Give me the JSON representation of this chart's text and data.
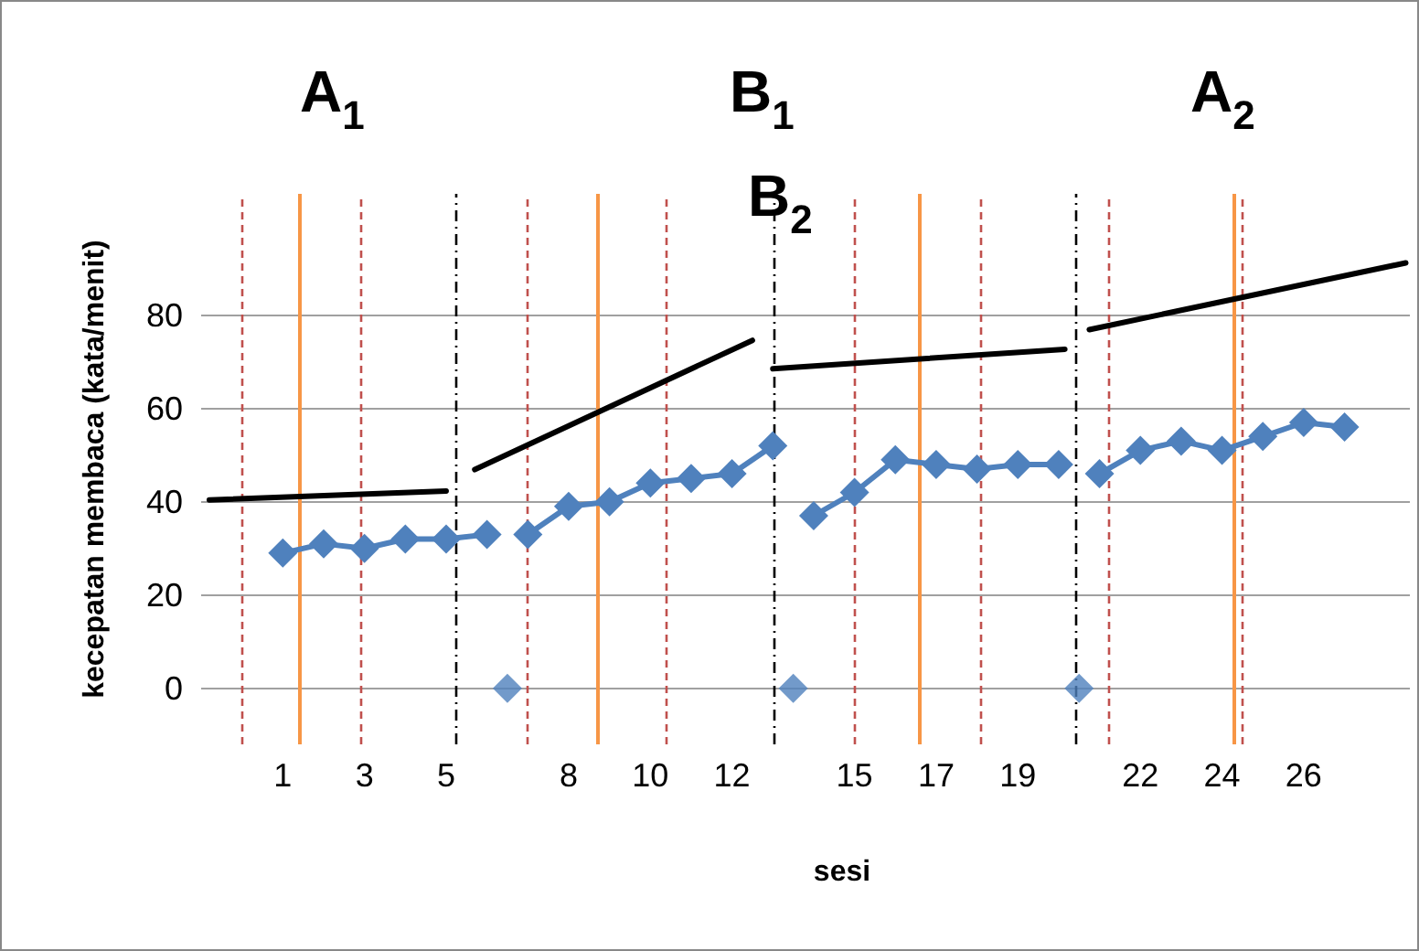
{
  "chart_data": {
    "type": "line",
    "xlabel": "sesi",
    "ylabel": "kecepatan membaca (kata/menit)",
    "xlim": [
      -1,
      28.6
    ],
    "xticks": [
      1,
      3,
      5,
      8,
      10,
      12,
      15,
      17,
      19,
      22,
      24,
      26
    ],
    "ylim": [
      -12,
      106
    ],
    "yticks": [
      0,
      20,
      40,
      60,
      80
    ],
    "grid": "y",
    "marker": "diamond",
    "series": [
      {
        "color": "#4f81bd",
        "x": [
          1,
          2,
          3,
          4,
          5,
          6
        ],
        "values": [
          29,
          31,
          30,
          32,
          32,
          33
        ]
      },
      {
        "color": "#4f81bd",
        "x": [
          7,
          8,
          9,
          10,
          11,
          12,
          13
        ],
        "values": [
          33,
          39,
          40,
          44,
          45,
          46,
          52
        ]
      },
      {
        "color": "#4f81bd",
        "x": [
          14,
          15,
          16,
          17,
          18,
          19,
          20
        ],
        "values": [
          37,
          42,
          49,
          48,
          47,
          48,
          48
        ]
      },
      {
        "color": "#4f81bd",
        "x": [
          21,
          22,
          23,
          24,
          25,
          26,
          27
        ],
        "values": [
          46,
          51,
          53,
          51,
          54,
          57,
          56
        ]
      },
      {
        "type": "scatter",
        "color": "#4f81bd",
        "x": [
          6.5,
          13.5,
          20.5
        ],
        "values": [
          0,
          0,
          0
        ]
      },
      {
        "color": "#000000",
        "marker": "none",
        "x": [
          -0.8,
          5.0
        ],
        "values": [
          40.4,
          42.3
        ]
      },
      {
        "color": "#000000",
        "marker": "none",
        "x": [
          5.7,
          12.5
        ],
        "values": [
          46.9,
          74.6
        ]
      },
      {
        "color": "#000000",
        "marker": "none",
        "x": [
          13.0,
          20.15
        ],
        "values": [
          68.5,
          72.7
        ]
      },
      {
        "color": "#000000",
        "marker": "none",
        "x": [
          20.75,
          28.5
        ],
        "values": [
          76.9,
          91.2
        ]
      }
    ],
    "ref_lines": [
      {
        "axis": "x",
        "value": 5.24,
        "color": "#000000",
        "line_style": "dashed"
      },
      {
        "axis": "x",
        "value": 13.03,
        "color": "#000000",
        "line_style": "dashed"
      },
      {
        "axis": "x",
        "value": 20.43,
        "color": "#000000",
        "line_style": "dashed"
      },
      {
        "axis": "x",
        "value": 1.4,
        "color": "#f79646",
        "line_style": "solid"
      },
      {
        "axis": "x",
        "value": 8.7,
        "color": "#f79646",
        "line_style": "solid"
      },
      {
        "axis": "x",
        "value": 16.6,
        "color": "#f79646",
        "line_style": "solid"
      },
      {
        "axis": "x",
        "value": 24.3,
        "color": "#f79646",
        "line_style": "solid"
      },
      {
        "axis": "x",
        "value": 0,
        "color": "#c0504d",
        "line_style": "dashed"
      },
      {
        "axis": "x",
        "value": 2.9,
        "color": "#c0504d",
        "line_style": "dashed"
      },
      {
        "axis": "x",
        "value": 7.0,
        "color": "#c0504d",
        "line_style": "dashed"
      },
      {
        "axis": "x",
        "value": 10.4,
        "color": "#c0504d",
        "line_style": "dashed"
      },
      {
        "axis": "x",
        "value": 15.0,
        "color": "#c0504d",
        "line_style": "dashed"
      },
      {
        "axis": "x",
        "value": 18.1,
        "color": "#c0504d",
        "line_style": "dashed"
      },
      {
        "axis": "x",
        "value": 21.2,
        "color": "#c0504d",
        "line_style": "dashed"
      },
      {
        "axis": "x",
        "value": 24.5,
        "color": "#c0504d",
        "line_style": "dashed"
      }
    ],
    "annotations": [
      "A$_{1}$",
      "B$_{1}$",
      "B$_{2}$",
      "A$_{2}$"
    ]
  }
}
